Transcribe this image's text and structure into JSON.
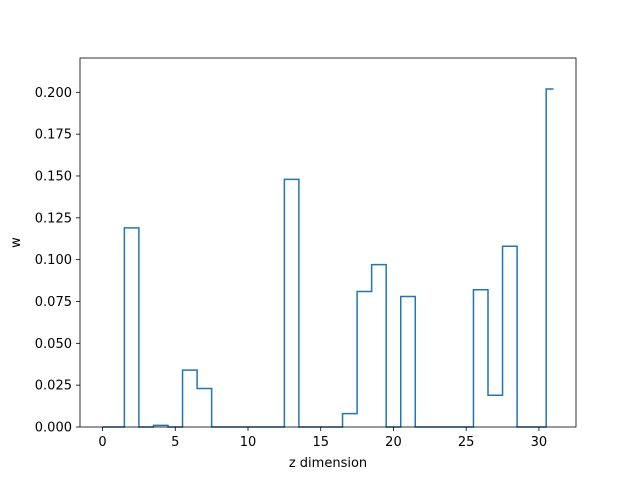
{
  "chart_data": {
    "type": "line",
    "drawstyle": "steps-mid",
    "title": "",
    "xlabel": "z dimension",
    "ylabel": "w",
    "xlim": [
      -1.55,
      32.55
    ],
    "ylim": [
      0,
      0.2205
    ],
    "xticks": [
      0,
      5,
      10,
      15,
      20,
      25,
      30
    ],
    "yticks": [
      0.0,
      0.025,
      0.05,
      0.075,
      0.1,
      0.125,
      0.15,
      0.175,
      0.2
    ],
    "ytick_labels": [
      "0.000",
      "0.025",
      "0.050",
      "0.075",
      "0.100",
      "0.125",
      "0.150",
      "0.175",
      "0.200"
    ],
    "grid": false,
    "color": "#1f77b4",
    "series": [
      {
        "x": [
          0,
          1,
          2,
          3,
          4,
          5,
          6,
          7,
          8,
          9,
          10,
          11,
          12,
          13,
          14,
          15,
          16,
          17,
          18,
          19,
          20,
          21,
          22,
          23,
          24,
          25,
          26,
          27,
          28,
          29,
          30,
          31
        ],
        "values": [
          0,
          0,
          0.119,
          0,
          0.001,
          0,
          0.034,
          0.023,
          0,
          0,
          0,
          0,
          0,
          0.148,
          0,
          0,
          0,
          0.008,
          0.081,
          0.097,
          0,
          0.078,
          0,
          0,
          0,
          0,
          0.082,
          0.019,
          0.108,
          0,
          0,
          0.202
        ]
      }
    ]
  }
}
